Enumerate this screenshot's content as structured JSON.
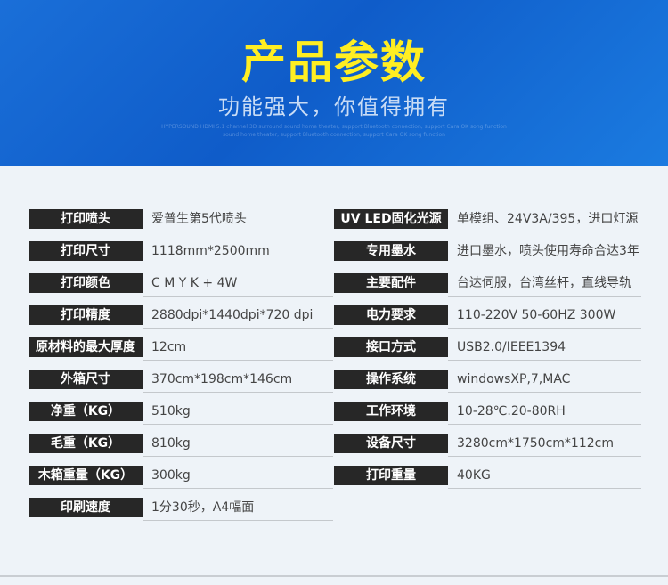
{
  "header": {
    "title": "产品参数",
    "subtitle": "功能强大，你值得拥有",
    "fine_print": [
      "HYPERSOUND HDMI 5.1 channel 3D surround sound home theater, support Bluetooth connection, support Cara OK song function",
      "sound home theater, support Bluetooth connection, support Cara OK song function"
    ]
  },
  "specs": {
    "left": [
      [
        "打印喷头",
        "爱普生第5代喷头"
      ],
      [
        "打印尺寸",
        "1118mm*2500mm"
      ],
      [
        "打印颜色",
        "C M Y K + 4W"
      ],
      [
        "打印精度",
        "2880dpi*1440dpi*720 dpi"
      ],
      [
        "原材料的最大厚度",
        "12cm"
      ],
      [
        "外箱尺寸",
        "370cm*198cm*146cm"
      ],
      [
        "净重（KG）",
        "510kg"
      ],
      [
        "毛重（KG）",
        "810kg"
      ],
      [
        "木箱重量（KG）",
        "300kg"
      ],
      [
        "印刷速度",
        "1分30秒，A4幅面"
      ]
    ],
    "right": [
      [
        "UV LED固化光源",
        "单模组、24V3A/395，进口灯源"
      ],
      [
        "专用墨水",
        "进口墨水，喷头使用寿命合达3年"
      ],
      [
        "主要配件",
        "台达伺服，台湾丝杆，直线导轨"
      ],
      [
        "电力要求",
        "110-220V 50-60HZ 300W"
      ],
      [
        "接口方式",
        "USB2.0/IEEE1394"
      ],
      [
        "操作系统",
        "windowsXP,7,MAC"
      ],
      [
        "工作环境",
        "10-28℃.20-80RH"
      ],
      [
        "设备尺寸",
        "3280cm*1750cm*112cm"
      ],
      [
        "打印重量",
        "40KG"
      ]
    ]
  }
}
